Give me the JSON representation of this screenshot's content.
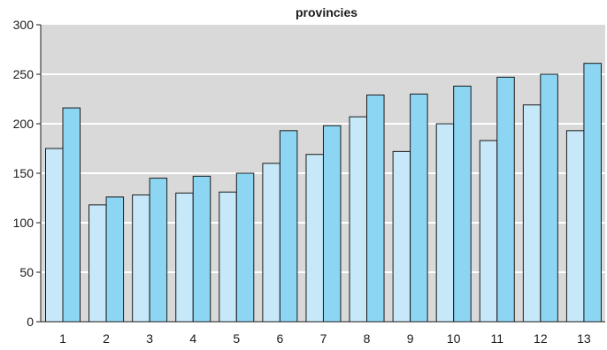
{
  "chart_data": {
    "type": "bar",
    "title": "provincies",
    "xlabel": "",
    "ylabel": "",
    "categories": [
      "1",
      "2",
      "3",
      "4",
      "5",
      "6",
      "7",
      "8",
      "9",
      "10",
      "11",
      "12",
      "13"
    ],
    "series": [
      {
        "values": [
          175,
          118,
          128,
          130,
          131,
          160,
          169,
          207,
          172,
          200,
          183,
          219,
          193
        ]
      },
      {
        "values": [
          216,
          126,
          145,
          147,
          150,
          193,
          198,
          229,
          230,
          238,
          247,
          250,
          261
        ]
      }
    ],
    "ylim": [
      0,
      300
    ],
    "yticks": [
      0,
      50,
      100,
      150,
      200,
      250,
      300
    ],
    "grid": true,
    "legend": "none",
    "colors": {
      "plot_background": "#d9d9d9",
      "gridline": "#ffffff",
      "series_1": "#c6e8f8",
      "series_2": "#8dd6f3",
      "bar_outline": "#1a1a1a"
    }
  }
}
